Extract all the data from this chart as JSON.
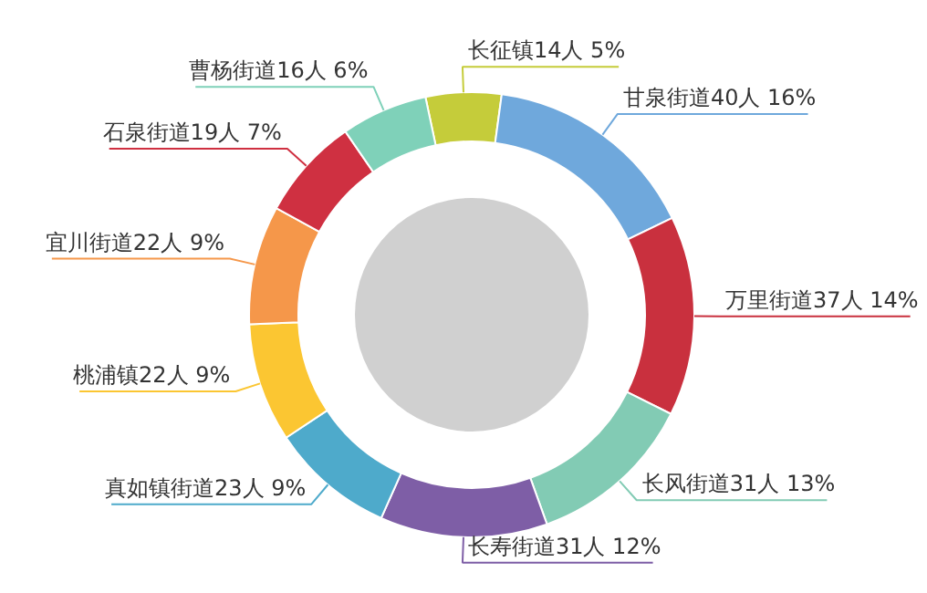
{
  "chart_data": {
    "type": "donut",
    "categories": [
      "长征镇",
      "甘泉街道",
      "万里街道",
      "长风街道",
      "长寿街道",
      "真如镇街道",
      "桃浦镇",
      "宜川街道",
      "石泉街道",
      "曹杨街道"
    ],
    "values": [
      14,
      40,
      37,
      31,
      31,
      23,
      22,
      22,
      19,
      16
    ],
    "value_labels": [
      "14人 5%",
      "40人 16%",
      "37人 14%",
      "31人 13%",
      "31人 12%",
      "23人 9%",
      "22人 9%",
      "22人 9%",
      "19人 7%",
      "16人 6%"
    ],
    "colors": [
      "#c5cc3a",
      "#6fa8dc",
      "#c9303e",
      "#82cbb4",
      "#7e5ea6",
      "#4eaacb",
      "#fbc632",
      "#f5974a",
      "#cf3041",
      "#7fd1b9"
    ]
  }
}
